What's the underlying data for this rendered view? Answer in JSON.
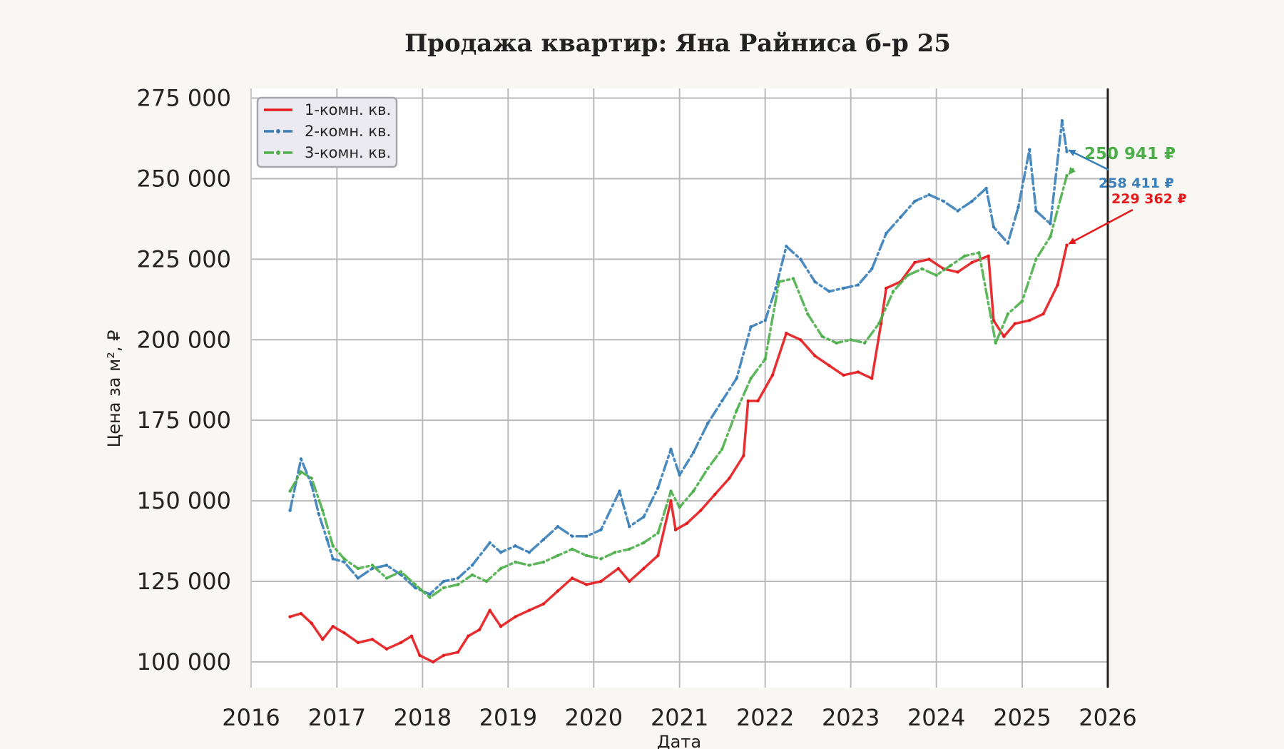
{
  "chart_data": {
    "type": "line",
    "title": "Продажа квартир: Яна Райниса б-р 25",
    "xlabel": "Дата",
    "ylabel": "Цена за м², ₽",
    "xlim": [
      "2016-01-01",
      "2026-01-01"
    ],
    "ylim": [
      92000,
      278000
    ],
    "x_ticks": [
      "2016",
      "2017",
      "2018",
      "2019",
      "2020",
      "2021",
      "2022",
      "2023",
      "2024",
      "2025",
      "2026"
    ],
    "y_ticks": [
      {
        "value": 100000,
        "label": "100 000"
      },
      {
        "value": 125000,
        "label": "125 000"
      },
      {
        "value": 150000,
        "label": "150 000"
      },
      {
        "value": 175000,
        "label": "175 000"
      },
      {
        "value": 200000,
        "label": "200 000"
      },
      {
        "value": 225000,
        "label": "225 000"
      },
      {
        "value": 250000,
        "label": "250 000"
      },
      {
        "value": 275000,
        "label": "275 000"
      }
    ],
    "grid": true,
    "legend_position": "top-left",
    "series": [
      {
        "name": "1-комн. кв.",
        "color": "#e41a1c",
        "style": "solid",
        "points": [
          [
            "2016-06-15",
            114000
          ],
          [
            "2016-08-01",
            115000
          ],
          [
            "2016-09-15",
            112000
          ],
          [
            "2016-11-01",
            107000
          ],
          [
            "2016-12-15",
            111000
          ],
          [
            "2017-02-01",
            109000
          ],
          [
            "2017-04-01",
            106000
          ],
          [
            "2017-06-01",
            107000
          ],
          [
            "2017-08-01",
            104000
          ],
          [
            "2017-10-01",
            106000
          ],
          [
            "2017-11-15",
            108000
          ],
          [
            "2017-12-20",
            102000
          ],
          [
            "2018-02-15",
            100000
          ],
          [
            "2018-04-01",
            102000
          ],
          [
            "2018-06-01",
            103000
          ],
          [
            "2018-07-15",
            108000
          ],
          [
            "2018-09-01",
            110000
          ],
          [
            "2018-10-15",
            116000
          ],
          [
            "2018-12-01",
            111000
          ],
          [
            "2019-02-01",
            114000
          ],
          [
            "2019-04-01",
            116000
          ],
          [
            "2019-06-01",
            118000
          ],
          [
            "2019-08-01",
            122000
          ],
          [
            "2019-10-01",
            126000
          ],
          [
            "2019-12-01",
            124000
          ],
          [
            "2020-02-01",
            125000
          ],
          [
            "2020-04-15",
            129000
          ],
          [
            "2020-06-01",
            125000
          ],
          [
            "2020-08-01",
            129000
          ],
          [
            "2020-10-01",
            133000
          ],
          [
            "2020-11-25",
            150000
          ],
          [
            "2020-12-15",
            141000
          ],
          [
            "2021-02-01",
            143000
          ],
          [
            "2021-04-01",
            147000
          ],
          [
            "2021-06-01",
            152000
          ],
          [
            "2021-08-01",
            157000
          ],
          [
            "2021-10-01",
            164000
          ],
          [
            "2021-10-20",
            181000
          ],
          [
            "2021-12-01",
            181000
          ],
          [
            "2022-02-01",
            189000
          ],
          [
            "2022-04-01",
            202000
          ],
          [
            "2022-06-01",
            200000
          ],
          [
            "2022-08-01",
            195000
          ],
          [
            "2022-10-01",
            192000
          ],
          [
            "2022-12-01",
            189000
          ],
          [
            "2023-02-01",
            190000
          ],
          [
            "2023-04-01",
            188000
          ],
          [
            "2023-05-10",
            205000
          ],
          [
            "2023-06-01",
            216000
          ],
          [
            "2023-08-01",
            218000
          ],
          [
            "2023-10-01",
            224000
          ],
          [
            "2023-12-01",
            225000
          ],
          [
            "2024-02-01",
            222000
          ],
          [
            "2024-04-01",
            221000
          ],
          [
            "2024-06-01",
            224000
          ],
          [
            "2024-08-10",
            226000
          ],
          [
            "2024-09-01",
            206000
          ],
          [
            "2024-10-15",
            201000
          ],
          [
            "2024-12-01",
            205000
          ],
          [
            "2025-02-01",
            206000
          ],
          [
            "2025-04-01",
            208000
          ],
          [
            "2025-06-01",
            217000
          ],
          [
            "2025-07-10",
            229362
          ]
        ]
      },
      {
        "name": "2-комн. кв.",
        "color": "#377eb8",
        "style": "dashdot",
        "points": [
          [
            "2016-06-15",
            147000
          ],
          [
            "2016-08-01",
            163000
          ],
          [
            "2016-09-15",
            155000
          ],
          [
            "2016-10-15",
            146000
          ],
          [
            "2016-11-20",
            138000
          ],
          [
            "2016-12-15",
            132000
          ],
          [
            "2017-02-01",
            131000
          ],
          [
            "2017-04-01",
            126000
          ],
          [
            "2017-06-01",
            129000
          ],
          [
            "2017-08-01",
            130000
          ],
          [
            "2017-10-01",
            127000
          ],
          [
            "2017-12-01",
            123000
          ],
          [
            "2018-02-01",
            121000
          ],
          [
            "2018-04-01",
            125000
          ],
          [
            "2018-06-01",
            126000
          ],
          [
            "2018-08-01",
            130000
          ],
          [
            "2018-10-15",
            137000
          ],
          [
            "2018-12-01",
            134000
          ],
          [
            "2019-02-01",
            136000
          ],
          [
            "2019-04-01",
            134000
          ],
          [
            "2019-06-01",
            138000
          ],
          [
            "2019-08-01",
            142000
          ],
          [
            "2019-10-01",
            139000
          ],
          [
            "2019-12-01",
            139000
          ],
          [
            "2020-02-01",
            141000
          ],
          [
            "2020-04-20",
            153000
          ],
          [
            "2020-06-01",
            142000
          ],
          [
            "2020-08-01",
            145000
          ],
          [
            "2020-10-01",
            154000
          ],
          [
            "2020-11-25",
            166000
          ],
          [
            "2021-01-01",
            158000
          ],
          [
            "2021-03-01",
            165000
          ],
          [
            "2021-05-01",
            174000
          ],
          [
            "2021-07-01",
            181000
          ],
          [
            "2021-09-01",
            188000
          ],
          [
            "2021-11-01",
            204000
          ],
          [
            "2022-01-01",
            206000
          ],
          [
            "2022-02-15",
            216000
          ],
          [
            "2022-04-01",
            229000
          ],
          [
            "2022-06-01",
            225000
          ],
          [
            "2022-08-01",
            218000
          ],
          [
            "2022-10-01",
            215000
          ],
          [
            "2022-12-01",
            216000
          ],
          [
            "2023-02-01",
            217000
          ],
          [
            "2023-04-01",
            222000
          ],
          [
            "2023-06-01",
            233000
          ],
          [
            "2023-08-01",
            238000
          ],
          [
            "2023-10-01",
            243000
          ],
          [
            "2023-12-01",
            245000
          ],
          [
            "2024-02-01",
            243000
          ],
          [
            "2024-04-01",
            240000
          ],
          [
            "2024-06-01",
            243000
          ],
          [
            "2024-08-01",
            247000
          ],
          [
            "2024-09-01",
            235000
          ],
          [
            "2024-11-01",
            230000
          ],
          [
            "2024-12-15",
            241000
          ],
          [
            "2025-02-01",
            259000
          ],
          [
            "2025-03-01",
            240000
          ],
          [
            "2025-05-01",
            236000
          ],
          [
            "2025-06-20",
            268000
          ],
          [
            "2025-07-10",
            258411
          ]
        ]
      },
      {
        "name": "3-комн. кв.",
        "color": "#4daf4a",
        "style": "dashdot",
        "points": [
          [
            "2016-06-15",
            153000
          ],
          [
            "2016-08-01",
            159000
          ],
          [
            "2016-09-15",
            157000
          ],
          [
            "2016-11-01",
            147000
          ],
          [
            "2016-12-15",
            136000
          ],
          [
            "2017-02-01",
            132000
          ],
          [
            "2017-04-01",
            129000
          ],
          [
            "2017-06-01",
            130000
          ],
          [
            "2017-08-01",
            126000
          ],
          [
            "2017-10-01",
            128000
          ],
          [
            "2017-12-01",
            124000
          ],
          [
            "2018-02-01",
            120000
          ],
          [
            "2018-04-01",
            123000
          ],
          [
            "2018-06-01",
            124000
          ],
          [
            "2018-08-01",
            127000
          ],
          [
            "2018-10-01",
            125000
          ],
          [
            "2018-12-01",
            129000
          ],
          [
            "2019-02-01",
            131000
          ],
          [
            "2019-04-01",
            130000
          ],
          [
            "2019-06-01",
            131000
          ],
          [
            "2019-08-01",
            133000
          ],
          [
            "2019-10-01",
            135000
          ],
          [
            "2019-12-01",
            133000
          ],
          [
            "2020-02-01",
            132000
          ],
          [
            "2020-04-01",
            134000
          ],
          [
            "2020-06-01",
            135000
          ],
          [
            "2020-08-01",
            137000
          ],
          [
            "2020-10-01",
            140000
          ],
          [
            "2020-11-25",
            153000
          ],
          [
            "2021-01-01",
            148000
          ],
          [
            "2021-03-01",
            153000
          ],
          [
            "2021-05-01",
            160000
          ],
          [
            "2021-07-01",
            166000
          ],
          [
            "2021-09-01",
            178000
          ],
          [
            "2021-11-01",
            188000
          ],
          [
            "2022-01-01",
            194000
          ],
          [
            "2022-03-01",
            218000
          ],
          [
            "2022-05-01",
            219000
          ],
          [
            "2022-07-01",
            208000
          ],
          [
            "2022-09-01",
            201000
          ],
          [
            "2022-11-01",
            199000
          ],
          [
            "2023-01-01",
            200000
          ],
          [
            "2023-03-01",
            199000
          ],
          [
            "2023-05-01",
            205000
          ],
          [
            "2023-07-01",
            215000
          ],
          [
            "2023-09-01",
            220000
          ],
          [
            "2023-11-01",
            222000
          ],
          [
            "2024-01-01",
            220000
          ],
          [
            "2024-03-01",
            223000
          ],
          [
            "2024-05-01",
            226000
          ],
          [
            "2024-07-01",
            227000
          ],
          [
            "2024-09-10",
            199000
          ],
          [
            "2024-11-01",
            208000
          ],
          [
            "2025-01-01",
            212000
          ],
          [
            "2025-03-01",
            225000
          ],
          [
            "2025-05-01",
            232000
          ],
          [
            "2025-07-10",
            250941
          ]
        ]
      }
    ],
    "annotations": [
      {
        "series": "3-комн. кв.",
        "text": "250 941 ₽",
        "color": "#4daf4a"
      },
      {
        "series": "2-комн. кв.",
        "text": "258 411 ₽",
        "color": "#377eb8"
      },
      {
        "series": "1-комн. кв.",
        "text": "229 362 ₽",
        "color": "#e41a1c"
      }
    ]
  }
}
